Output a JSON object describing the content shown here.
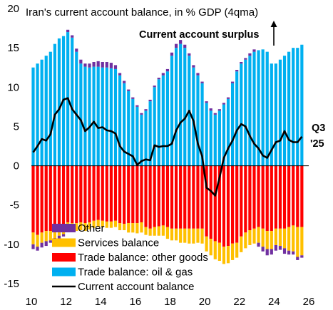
{
  "chart_data": {
    "type": "bar",
    "title": "Iran's current account balance, in % GDP (4qma)",
    "annotation": "Current account surplus",
    "end_label_line1": "Q3",
    "end_label_line2": "'25",
    "xlim": [
      10,
      26
    ],
    "ylim": [
      -15,
      20
    ],
    "x_ticks": [
      "10",
      "12",
      "14",
      "16",
      "18",
      "20",
      "22",
      "24",
      "26"
    ],
    "y_ticks": [
      "20",
      "15",
      "10",
      "5",
      "0",
      "-5",
      "-10",
      "-15"
    ],
    "series": [
      {
        "name": "Other",
        "color": "#7030a0"
      },
      {
        "name": "Services balance",
        "color": "#ffc000"
      },
      {
        "name": "Trade balance: other goods",
        "color": "#ff0000"
      },
      {
        "name": "Trade balance: oil & gas",
        "color": "#00b0f0"
      },
      {
        "name": "Current account balance",
        "color": "#000000"
      }
    ],
    "x": [
      10.0,
      10.25,
      10.5,
      10.75,
      11.0,
      11.25,
      11.5,
      11.75,
      12.0,
      12.25,
      12.5,
      12.75,
      13.0,
      13.25,
      13.5,
      13.75,
      14.0,
      14.25,
      14.5,
      14.75,
      15.0,
      15.25,
      15.5,
      15.75,
      16.0,
      16.25,
      16.5,
      16.75,
      17.0,
      17.25,
      17.5,
      17.75,
      18.0,
      18.25,
      18.5,
      18.75,
      19.0,
      19.25,
      19.5,
      19.75,
      20.0,
      20.25,
      20.5,
      20.75,
      21.0,
      21.25,
      21.5,
      21.75,
      22.0,
      22.25,
      22.5,
      22.75,
      23.0,
      23.25,
      23.5,
      23.75,
      24.0,
      24.25,
      24.5,
      24.75,
      25.0,
      25.25,
      25.5
    ],
    "oil_gas": [
      12.5,
      13.0,
      13.5,
      14.0,
      14.5,
      15.5,
      16.2,
      16.5,
      17.0,
      16.3,
      14.5,
      13.0,
      12.6,
      12.5,
      12.6,
      12.6,
      12.5,
      12.5,
      12.4,
      12.3,
      11.5,
      10.5,
      9.5,
      8.5,
      7.5,
      6.5,
      7.0,
      8.2,
      10.0,
      11.0,
      11.5,
      12.0,
      14.0,
      15.0,
      15.5,
      15.0,
      14.0,
      12.5,
      11.5,
      10.5,
      8.0,
      7.0,
      6.5,
      7.0,
      7.8,
      8.5,
      10.5,
      12.0,
      13.0,
      13.5,
      14.0,
      14.5,
      14.7,
      14.8,
      14.5,
      13.0,
      13.0,
      13.5,
      14.0,
      14.5,
      15.0,
      15.0,
      15.4
    ],
    "other_goods": [
      -8.5,
      -8.8,
      -8.5,
      -8.3,
      -8.3,
      -8.0,
      -7.8,
      -7.6,
      -7.2,
      -7.3,
      -7.3,
      -7.2,
      -7.3,
      -7.2,
      -7.0,
      -6.9,
      -7.0,
      -7.1,
      -7.1,
      -7.0,
      -7.3,
      -7.4,
      -7.3,
      -7.3,
      -7.3,
      -7.2,
      -7.8,
      -8.0,
      -7.8,
      -7.7,
      -7.6,
      -7.8,
      -8.0,
      -8.0,
      -8.0,
      -8.0,
      -8.0,
      -8.0,
      -8.0,
      -8.0,
      -9.0,
      -9.3,
      -9.6,
      -9.8,
      -10.3,
      -10.2,
      -9.9,
      -9.8,
      -9.0,
      -8.5,
      -8.2,
      -8.0,
      -7.8,
      -8.0,
      -8.3,
      -8.3,
      -8.0,
      -8.0,
      -8.0,
      -7.8,
      -7.6,
      -7.8,
      -7.8
    ],
    "services": [
      -1.5,
      -1.5,
      -1.3,
      -1.3,
      -1.2,
      -1.2,
      -1.1,
      -1.1,
      -1.1,
      -1.0,
      -1.0,
      -1.0,
      -1.0,
      -0.9,
      -0.9,
      -0.9,
      -0.8,
      -0.8,
      -0.8,
      -0.8,
      -0.9,
      -0.8,
      -1.2,
      -1.2,
      -1.3,
      -1.3,
      -1.0,
      -0.9,
      -1.1,
      -1.2,
      -1.3,
      -1.5,
      -1.5,
      -1.5,
      -1.8,
      -1.8,
      -1.9,
      -1.9,
      -1.8,
      -1.9,
      -1.9,
      -2.1,
      -2.3,
      -2.3,
      -2.2,
      -2.2,
      -2.1,
      -1.9,
      -2.0,
      -2.0,
      -1.9,
      -1.9,
      -2.0,
      -2.3,
      -2.3,
      -2.3,
      -2.1,
      -2.2,
      -2.5,
      -3.0,
      -3.3,
      -3.8,
      -3.6
    ],
    "other": [
      -0.6,
      -0.5,
      -0.6,
      -0.6,
      -0.3,
      -0.3,
      -0.4,
      -0.3,
      0.3,
      0.3,
      0.4,
      0.5,
      0.4,
      0.5,
      0.6,
      0.7,
      0.7,
      0.7,
      0.7,
      0.5,
      0.3,
      0.3,
      0.2,
      0.2,
      0.2,
      0.2,
      0.2,
      0.2,
      0.2,
      0.2,
      0.3,
      0.3,
      0.4,
      0.5,
      0.5,
      0.4,
      0.3,
      0.3,
      0.3,
      0.2,
      0.2,
      0.3,
      0.2,
      0.2,
      0.2,
      0.2,
      0.2,
      0.2,
      0.2,
      0.2,
      0.3,
      0.3,
      -0.5,
      -0.6,
      -0.8,
      -0.7,
      -0.7,
      -0.5,
      -0.7,
      -0.5,
      -0.4,
      -0.4,
      -0.3
    ],
    "current_account": [
      1.7,
      2.5,
      3.4,
      3.2,
      4.0,
      6.5,
      7.2,
      8.4,
      8.6,
      7.2,
      6.5,
      5.8,
      4.4,
      4.9,
      5.6,
      4.8,
      4.9,
      4.5,
      4.4,
      4.1,
      2.5,
      1.8,
      1.5,
      1.2,
      0.1,
      0.6,
      0.8,
      0.7,
      2.6,
      2.4,
      2.5,
      2.5,
      2.8,
      4.5,
      5.5,
      6.0,
      7.0,
      5.7,
      2.8,
      1.2,
      -2.8,
      -3.2,
      -3.8,
      -1.5,
      1.0,
      2.2,
      3.2,
      4.5,
      5.3,
      5.0,
      3.8,
      2.8,
      2.2,
      1.3,
      1.0,
      2.0,
      3.0,
      3.2,
      4.4,
      3.3,
      3.0,
      3.0,
      3.7
    ]
  }
}
